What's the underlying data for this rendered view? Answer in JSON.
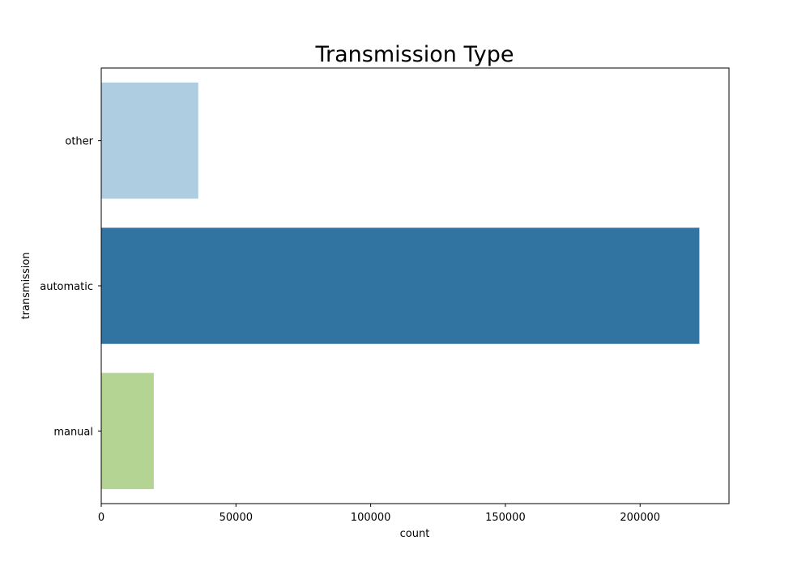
{
  "chart_data": {
    "type": "bar",
    "orientation": "horizontal",
    "title": "Transmission Type",
    "xlabel": "count",
    "ylabel": "transmission",
    "categories": [
      "other",
      "automatic",
      "manual"
    ],
    "values": [
      36000,
      222000,
      19500
    ],
    "colors": [
      "#aecde1",
      "#3174a2",
      "#b3d492"
    ],
    "xlim": [
      0,
      233000
    ],
    "xticks": [
      0,
      50000,
      100000,
      150000,
      200000
    ],
    "grid": false,
    "legend": "none"
  }
}
